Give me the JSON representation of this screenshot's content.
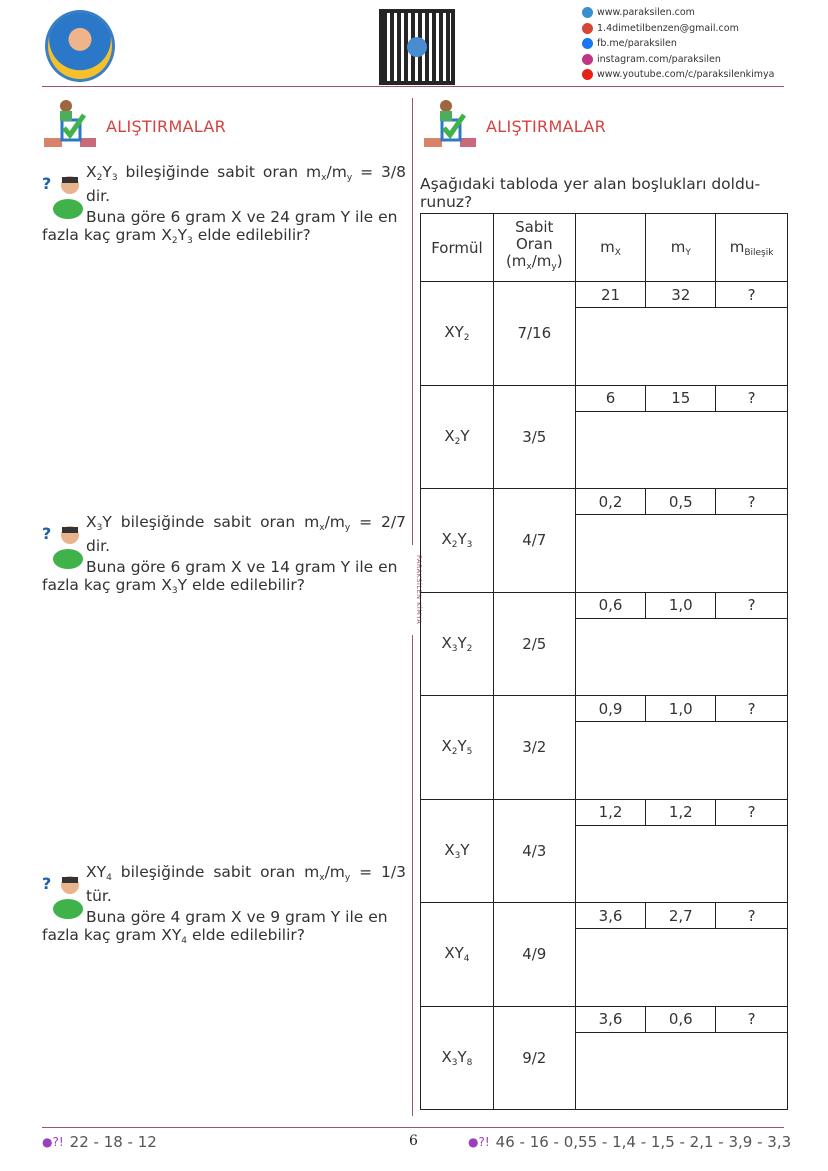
{
  "header": {
    "contacts": [
      {
        "icon": "web-icon",
        "color": "#3a8fd0",
        "text": "www.paraksilen.com"
      },
      {
        "icon": "gmail-icon",
        "color": "#d44638",
        "text": "1.4dimetilbenzen@gmail.com"
      },
      {
        "icon": "facebook-icon",
        "color": "#1877f2",
        "text": "fb.me/paraksilen"
      },
      {
        "icon": "instagram-icon",
        "color": "#c13584",
        "text": "instagram.com/paraksilen"
      },
      {
        "icon": "youtube-icon",
        "color": "#e62117",
        "text": "www.youtube.com/c/paraksilenkimya"
      }
    ]
  },
  "divider_label": "PARAKSİLEN KİMYA",
  "left": {
    "title": "ALIŞTIRMALAR",
    "questions": [
      {
        "line1": [
          {
            "t": "X"
          },
          {
            "s": "2"
          },
          {
            "t": "Y"
          },
          {
            "s": "3"
          },
          {
            "t": " bileşiğinde sabit oran m"
          },
          {
            "s": "x"
          },
          {
            "t": "/m"
          },
          {
            "s": "y"
          },
          {
            "t": " = 3/8 dir."
          }
        ],
        "line2": [
          {
            "t": "Buna göre 6 gram X ve 24 gram Y ile en fazla kaç gram X"
          },
          {
            "s": "2"
          },
          {
            "t": "Y"
          },
          {
            "s": "3"
          },
          {
            "t": " elde edilebilir?"
          }
        ]
      },
      {
        "line1": [
          {
            "t": "X"
          },
          {
            "s": "3"
          },
          {
            "t": "Y bileşiğinde sabit oran m"
          },
          {
            "s": "x"
          },
          {
            "t": "/m"
          },
          {
            "s": "y"
          },
          {
            "t": " = 2/7 dir."
          }
        ],
        "line2": [
          {
            "t": "Buna göre 6 gram X ve 14 gram Y ile en fazla kaç gram X"
          },
          {
            "s": "3"
          },
          {
            "t": "Y elde edilebilir?"
          }
        ]
      },
      {
        "line1": [
          {
            "t": "XY"
          },
          {
            "s": "4"
          },
          {
            "t": " bileşiğinde sabit oran m"
          },
          {
            "s": "x"
          },
          {
            "t": "/m"
          },
          {
            "s": "y"
          },
          {
            "t": " = 1/3 tür."
          }
        ],
        "line2": [
          {
            "t": "Buna göre 4 gram X ve 9 gram Y ile en fazla kaç gram XY"
          },
          {
            "s": "4"
          },
          {
            "t": " elde edilebilir?"
          }
        ]
      }
    ]
  },
  "right": {
    "title": "ALIŞTIRMALAR",
    "instruction": "Aşağıdaki tabloda yer alan boşlukları doldu-runuz?",
    "headers": {
      "formula": "Formül",
      "ratio_line1": "Sabit",
      "ratio_line2": "Oran",
      "ratio_line3": [
        {
          "t": "(m"
        },
        {
          "s": "x"
        },
        {
          "t": "/m"
        },
        {
          "s": "y"
        },
        {
          "t": ")"
        }
      ],
      "mx": [
        {
          "t": "m"
        },
        {
          "s": "X"
        }
      ],
      "my": [
        {
          "t": "m"
        },
        {
          "s": "Y"
        }
      ],
      "mc": [
        {
          "t": "m"
        },
        {
          "s": "Bileşik"
        }
      ]
    },
    "rows": [
      {
        "formula": [
          {
            "t": "XY"
          },
          {
            "s": "2"
          }
        ],
        "ratio": "7/16",
        "mx": "21",
        "my": "32",
        "mc": "?"
      },
      {
        "formula": [
          {
            "t": "X"
          },
          {
            "s": "2"
          },
          {
            "t": "Y"
          }
        ],
        "ratio": "3/5",
        "mx": "6",
        "my": "15",
        "mc": "?"
      },
      {
        "formula": [
          {
            "t": "X"
          },
          {
            "s": "2"
          },
          {
            "t": "Y"
          },
          {
            "s": "3"
          }
        ],
        "ratio": "4/7",
        "mx": "0,2",
        "my": "0,5",
        "mc": "?"
      },
      {
        "formula": [
          {
            "t": "X"
          },
          {
            "s": "3"
          },
          {
            "t": "Y"
          },
          {
            "s": "2"
          }
        ],
        "ratio": "2/5",
        "mx": "0,6",
        "my": "1,0",
        "mc": "?"
      },
      {
        "formula": [
          {
            "t": "X"
          },
          {
            "s": "2"
          },
          {
            "t": "Y"
          },
          {
            "s": "5"
          }
        ],
        "ratio": "3/2",
        "mx": "0,9",
        "my": "1,0",
        "mc": "?"
      },
      {
        "formula": [
          {
            "t": "X"
          },
          {
            "s": "3"
          },
          {
            "t": "Y"
          }
        ],
        "ratio": "4/3",
        "mx": "1,2",
        "my": "1,2",
        "mc": "?"
      },
      {
        "formula": [
          {
            "t": "XY"
          },
          {
            "s": "4"
          }
        ],
        "ratio": "4/9",
        "mx": "3,6",
        "my": "2,7",
        "mc": "?"
      },
      {
        "formula": [
          {
            "t": "X"
          },
          {
            "s": "3"
          },
          {
            "t": "Y"
          },
          {
            "s": "8"
          }
        ],
        "ratio": "9/2",
        "mx": "3,6",
        "my": "0,6",
        "mc": "?"
      }
    ]
  },
  "footer": {
    "left_answers": "22 - 18 - 12",
    "page_number": "6",
    "right_answers": "46 - 16 - 0,55 - 1,4 - 1,5 - 2,1 - 3,9 - 3,3"
  },
  "colors": {
    "accent": "#d6413f",
    "rule": "#9b5570"
  }
}
